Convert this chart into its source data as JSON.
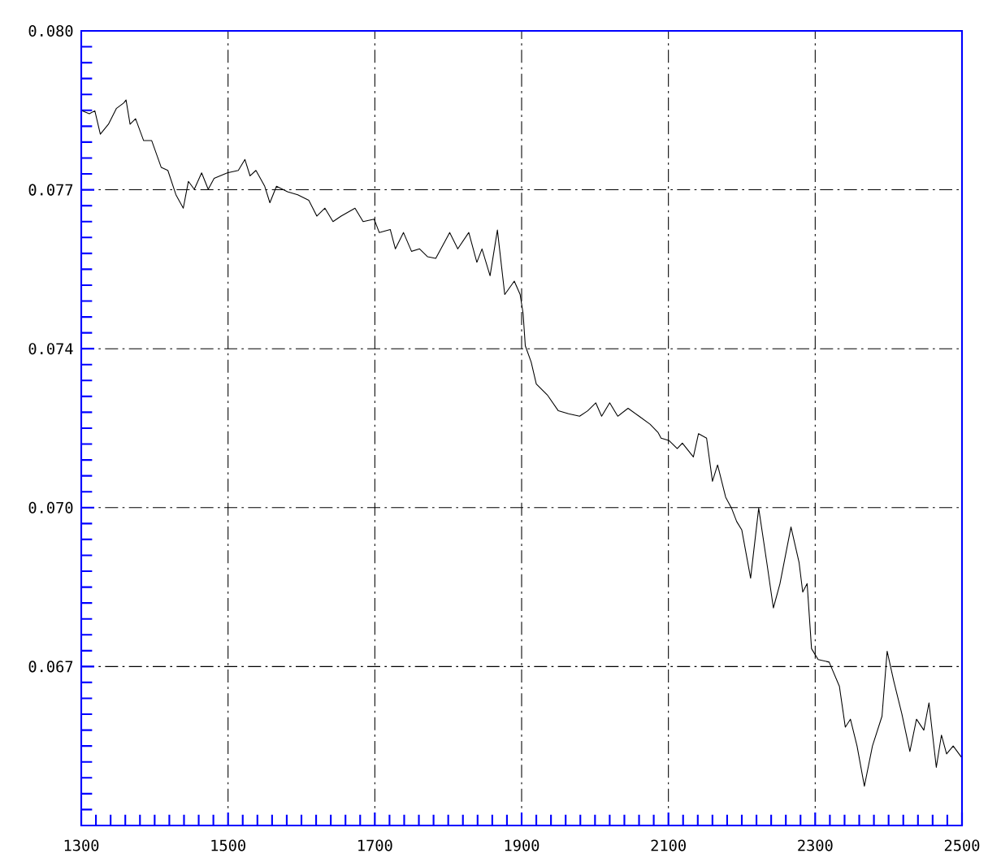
{
  "chart_data": {
    "type": "line",
    "color": "#000000",
    "line_style": "solid",
    "marker": "none",
    "grid": true,
    "x": [
      1301.5,
      1311,
      1318.5,
      1326,
      1337,
      1348,
      1358,
      1361,
      1366.5,
      1374,
      1385,
      1396,
      1409,
      1418,
      1429,
      1439,
      1446,
      1454,
      1464,
      1473,
      1481,
      1499,
      1514,
      1523,
      1530,
      1538,
      1550,
      1557,
      1566,
      1581,
      1595,
      1610,
      1621,
      1632,
      1643,
      1654,
      1673,
      1684,
      1699,
      1706,
      1721,
      1728,
      1739,
      1750,
      1761,
      1772,
      1783,
      1802,
      1813,
      1828,
      1839,
      1846,
      1857,
      1867,
      1877,
      1890,
      1898,
      1902,
      1905,
      1913,
      1920,
      1935,
      1950,
      1964,
      1979,
      1990,
      2001,
      2009,
      2020,
      2031,
      2045,
      2060,
      2075,
      2086,
      2090,
      2101,
      2112,
      2119,
      2134,
      2141,
      2152,
      2160,
      2167,
      2178,
      2186,
      2193,
      2200,
      2212,
      2223,
      2234,
      2243,
      2252,
      2267,
      2278,
      2283,
      2289,
      2295,
      2304,
      2319,
      2333,
      2341,
      2348,
      2357,
      2367,
      2378,
      2391,
      2398,
      2407,
      2418,
      2429,
      2438,
      2448,
      2455,
      2465,
      2472,
      2479,
      2488,
      2499
    ],
    "values": [
      0.07839,
      0.07833,
      0.07839,
      0.07792,
      0.07812,
      0.07844,
      0.07855,
      0.07861,
      0.07812,
      0.07823,
      0.07779,
      0.07779,
      0.07725,
      0.07719,
      0.0767,
      0.07643,
      0.07697,
      0.07681,
      0.07714,
      0.07681,
      0.07703,
      0.07714,
      0.07719,
      0.07741,
      0.07708,
      0.07719,
      0.07687,
      0.07654,
      0.07687,
      0.07676,
      0.0767,
      0.07659,
      0.07627,
      0.07643,
      0.07616,
      0.07627,
      0.07643,
      0.07616,
      0.07621,
      0.07594,
      0.076,
      0.07561,
      0.07594,
      0.07556,
      0.07561,
      0.07545,
      0.07542,
      0.07594,
      0.07561,
      0.07594,
      0.07534,
      0.07561,
      0.07507,
      0.07599,
      0.07469,
      0.07496,
      0.07469,
      0.07431,
      0.07366,
      0.07333,
      0.07289,
      0.07267,
      0.07235,
      0.07229,
      0.07224,
      0.07235,
      0.07251,
      0.07224,
      0.07251,
      0.07224,
      0.0724,
      0.07224,
      0.07208,
      0.07191,
      0.0718,
      0.07175,
      0.07159,
      0.0717,
      0.07142,
      0.07189,
      0.0718,
      0.07093,
      0.07126,
      0.07061,
      0.07039,
      0.07012,
      0.06995,
      0.06898,
      0.07039,
      0.0693,
      0.06838,
      0.06887,
      0.07001,
      0.0693,
      0.0687,
      0.06887,
      0.06756,
      0.06734,
      0.06729,
      0.0668,
      0.06598,
      0.06614,
      0.0656,
      0.06479,
      0.0656,
      0.0662,
      0.06751,
      0.06691,
      0.06625,
      0.06549,
      0.06614,
      0.06592,
      0.06647,
      0.06517,
      0.06582,
      0.06544,
      0.0656,
      0.06538
    ],
    "xlim": [
      1300,
      2500
    ],
    "ylim": [
      0.064,
      0.08
    ],
    "xticks": [
      1300,
      {
        "value": 1320,
        "label": null
      },
      {
        "value": 1340,
        "label": null
      },
      {
        "value": 1360,
        "label": null
      },
      {
        "value": 1380,
        "label": null
      },
      {
        "value": 1400,
        "label": null
      },
      {
        "value": 1420,
        "label": null
      },
      {
        "value": 1440,
        "label": null
      },
      {
        "value": 1460,
        "label": null
      },
      {
        "value": 1480,
        "label": null
      },
      1500,
      {
        "value": 1520,
        "label": null
      },
      {
        "value": 1540,
        "label": null
      },
      {
        "value": 1560,
        "label": null
      },
      {
        "value": 1580,
        "label": null
      },
      {
        "value": 1600,
        "label": null
      },
      {
        "value": 1620,
        "label": null
      },
      {
        "value": 1640,
        "label": null
      },
      {
        "value": 1660,
        "label": null
      },
      {
        "value": 1680,
        "label": null
      },
      1700,
      {
        "value": 1720,
        "label": null
      },
      {
        "value": 1740,
        "label": null
      },
      {
        "value": 1760,
        "label": null
      },
      {
        "value": 1780,
        "label": null
      },
      {
        "value": 1800,
        "label": null
      },
      {
        "value": 1820,
        "label": null
      },
      {
        "value": 1840,
        "label": null
      },
      {
        "value": 1860,
        "label": null
      },
      {
        "value": 1880,
        "label": null
      },
      1900,
      {
        "value": 1920,
        "label": null
      },
      {
        "value": 1940,
        "label": null
      },
      {
        "value": 1960,
        "label": null
      },
      {
        "value": 1980,
        "label": null
      },
      {
        "value": 2000,
        "label": null
      },
      {
        "value": 2020,
        "label": null
      },
      {
        "value": 2040,
        "label": null
      },
      {
        "value": 2060,
        "label": null
      },
      {
        "value": 2080,
        "label": null
      },
      2100,
      {
        "value": 2120,
        "label": null
      },
      {
        "value": 2140,
        "label": null
      },
      {
        "value": 2160,
        "label": null
      },
      {
        "value": 2180,
        "label": null
      },
      {
        "value": 2200,
        "label": null
      },
      {
        "value": 2220,
        "label": null
      },
      {
        "value": 2240,
        "label": null
      },
      {
        "value": 2260,
        "label": null
      },
      {
        "value": 2280,
        "label": null
      },
      2300,
      {
        "value": 2320,
        "label": null
      },
      {
        "value": 2340,
        "label": null
      },
      {
        "value": 2360,
        "label": null
      },
      {
        "value": 2380,
        "label": null
      },
      {
        "value": 2400,
        "label": null
      },
      {
        "value": 2420,
        "label": null
      },
      {
        "value": 2440,
        "label": null
      },
      {
        "value": 2460,
        "label": null
      },
      {
        "value": 2480,
        "label": null
      },
      2500
    ],
    "yticks": [
      {
        "value": 0.064,
        "label": null
      },
      {
        "value": 0.06432,
        "label": null
      },
      {
        "value": 0.06464,
        "label": null
      },
      {
        "value": 0.06496,
        "label": null
      },
      {
        "value": 0.06528,
        "label": null
      },
      {
        "value": 0.0656,
        "label": null
      },
      {
        "value": 0.06592,
        "label": null
      },
      {
        "value": 0.06624,
        "label": null
      },
      {
        "value": 0.06656,
        "label": null
      },
      {
        "value": 0.06688,
        "label": null
      },
      {
        "value": 0.0672,
        "label": "0.067"
      },
      {
        "value": 0.06752,
        "label": null
      },
      {
        "value": 0.06784,
        "label": null
      },
      {
        "value": 0.06816,
        "label": null
      },
      {
        "value": 0.06848,
        "label": null
      },
      {
        "value": 0.0688,
        "label": null
      },
      {
        "value": 0.06912,
        "label": null
      },
      {
        "value": 0.06944,
        "label": null
      },
      {
        "value": 0.06976,
        "label": null
      },
      {
        "value": 0.07008,
        "label": null
      },
      {
        "value": 0.0704,
        "label": "0.070"
      },
      {
        "value": 0.07072,
        "label": null
      },
      {
        "value": 0.07104,
        "label": null
      },
      {
        "value": 0.07136,
        "label": null
      },
      {
        "value": 0.07168,
        "label": null
      },
      {
        "value": 0.072,
        "label": null
      },
      {
        "value": 0.07232,
        "label": null
      },
      {
        "value": 0.07264,
        "label": null
      },
      {
        "value": 0.07296,
        "label": null
      },
      {
        "value": 0.07328,
        "label": null
      },
      {
        "value": 0.0736,
        "label": "0.074"
      },
      {
        "value": 0.07392,
        "label": null
      },
      {
        "value": 0.07424,
        "label": null
      },
      {
        "value": 0.07456,
        "label": null
      },
      {
        "value": 0.07488,
        "label": null
      },
      {
        "value": 0.0752,
        "label": null
      },
      {
        "value": 0.07552,
        "label": null
      },
      {
        "value": 0.07584,
        "label": null
      },
      {
        "value": 0.07616,
        "label": null
      },
      {
        "value": 0.07648,
        "label": null
      },
      {
        "value": 0.0768,
        "label": "0.077"
      },
      {
        "value": 0.07712,
        "label": null
      },
      {
        "value": 0.07744,
        "label": null
      },
      {
        "value": 0.07776,
        "label": null
      },
      {
        "value": 0.07808,
        "label": null
      },
      {
        "value": 0.0784,
        "label": null
      },
      {
        "value": 0.07872,
        "label": null
      },
      {
        "value": 0.07904,
        "label": null
      },
      {
        "value": 0.07936,
        "label": null
      },
      {
        "value": 0.07968,
        "label": null
      },
      {
        "value": 0.08,
        "label": "0.080"
      }
    ]
  }
}
